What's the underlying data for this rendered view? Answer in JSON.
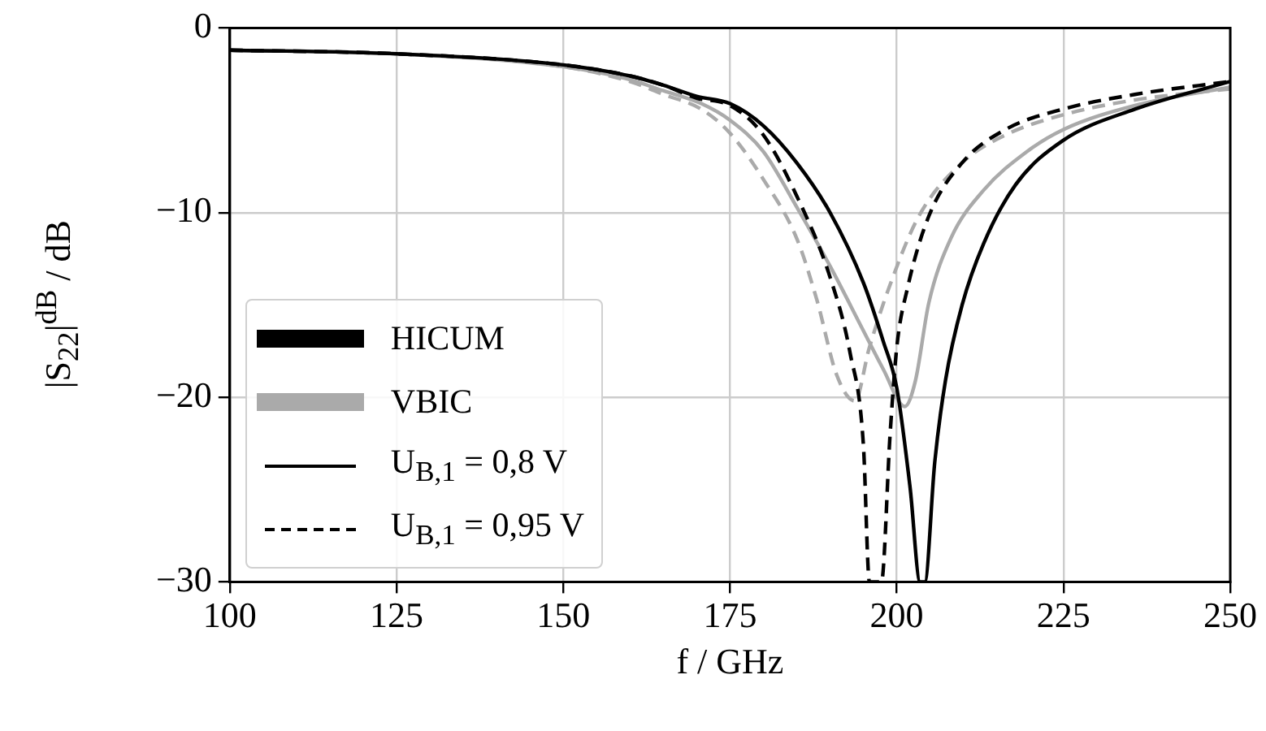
{
  "chart_data": {
    "type": "line",
    "xlabel": "f / GHz",
    "ylabel": "|S$_{22}$|$^{dB}$ / dB",
    "xlim": [
      100,
      250
    ],
    "xticks": [
      100,
      125,
      150,
      175,
      200,
      225,
      250
    ],
    "ylim": [
      -30,
      0
    ],
    "yticks": [
      {
        "value": -30,
        "label": "−30"
      },
      {
        "value": -20,
        "label": "−20"
      },
      {
        "value": -10,
        "label": "−10"
      },
      0
    ],
    "grid": true,
    "marker": "none",
    "annotations": [
      "HICUM",
      "VBIC",
      "U$_{B,1}$ = 0,8 V",
      "U$_{B,1}$ = 0,95 V"
    ],
    "series": [
      {
        "color": "#000000",
        "line_style": "solid",
        "x": [
          100,
          125,
          150,
          160,
          165,
          170,
          175,
          180,
          185,
          190,
          195,
          198,
          200,
          202,
          203.5,
          204.2,
          205.7,
          207.3,
          209.8,
          213,
          217.8,
          224.9,
          235.7,
          250
        ],
        "values": [
          -1.2,
          -1.4,
          -2.0,
          -2.6,
          -3.1,
          -3.7,
          -4.1,
          -5.3,
          -7.3,
          -10,
          -13.8,
          -17,
          -19.5,
          -24.9,
          -30,
          -30,
          -23.5,
          -19.1,
          -15,
          -11.7,
          -8.5,
          -6.1,
          -4.4,
          -2.9
        ]
      },
      {
        "color": "#000000",
        "line_style": "dashed",
        "x": [
          100,
          125,
          150,
          160,
          165,
          170,
          175,
          180,
          185,
          190,
          193,
          195,
          195.9,
          197.7,
          199,
          200,
          201.6,
          204.8,
          209.8,
          216.3,
          224.9,
          235.7,
          250
        ],
        "values": [
          -1.2,
          -1.4,
          -2.0,
          -2.6,
          -3.1,
          -3.8,
          -4.2,
          -5.8,
          -9.1,
          -13.5,
          -17.6,
          -22.6,
          -30,
          -30,
          -22,
          -17.3,
          -14.1,
          -10.2,
          -7.3,
          -5.5,
          -4.4,
          -3.6,
          -2.9
        ]
      },
      {
        "color": "#aaaaaa",
        "line_style": "solid",
        "x": [
          100,
          125,
          150,
          160,
          165,
          170.7,
          175,
          180,
          185,
          190,
          195,
          198,
          201.2,
          202.8,
          204.8,
          208.1,
          213,
          219.5,
          225,
          235.7,
          250
        ],
        "values": [
          -1.2,
          -1.4,
          -2.1,
          -2.8,
          -3.4,
          -4.1,
          -5,
          -6.7,
          -9.7,
          -12.9,
          -16.4,
          -18.5,
          -20.5,
          -19.1,
          -14.9,
          -11.4,
          -8.8,
          -6.7,
          -5.5,
          -4.2,
          -3.2
        ]
      },
      {
        "color": "#aaaaaa",
        "line_style": "dashed",
        "x": [
          100,
          125,
          150,
          160,
          165,
          170.7,
          175,
          180,
          185,
          188,
          191,
          193.7,
          195.9,
          198.8,
          203.3,
          209.8,
          216.3,
          225,
          235.7,
          250
        ],
        "values": [
          -1.2,
          -1.4,
          -2.1,
          -2.9,
          -3.6,
          -4.4,
          -5.7,
          -8.2,
          -11.4,
          -14.7,
          -18.8,
          -20.2,
          -17.3,
          -14.1,
          -10.2,
          -7.3,
          -5.8,
          -4.7,
          -3.9,
          -3.3
        ]
      }
    ]
  }
}
